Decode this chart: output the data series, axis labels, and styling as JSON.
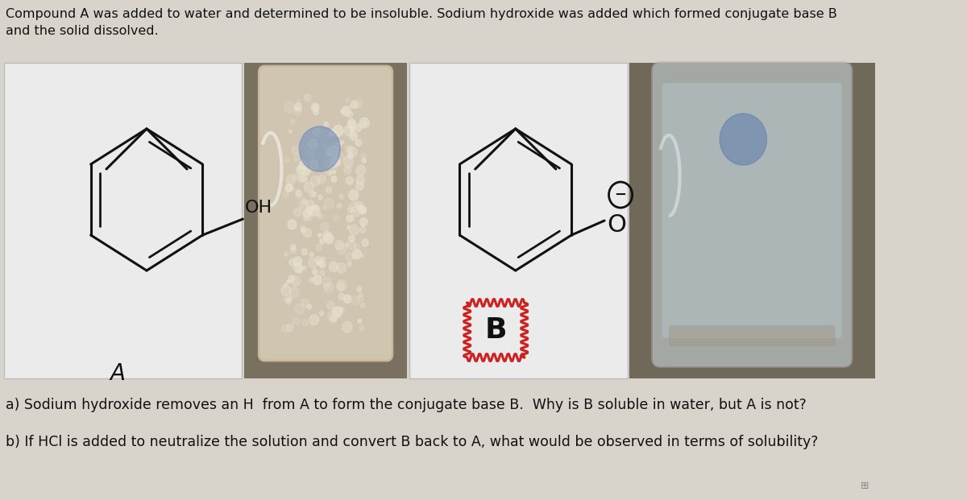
{
  "background_color": "#d8d4cc",
  "title_text": "Compound A was added to water and determined to be insoluble. Sodium hydroxide was added which formed conjugate base B\nand the solid dissolved.",
  "question_a": "a) Sodium hydroxide removes an H  from A to form the conjugate base B.  Why is B soluble in water, but A is not?",
  "question_b": "b) If HCl is added to neutralize the solution and convert B back to A, what would be observed in terms of solubility?",
  "label_A": "A",
  "label_B": "B",
  "label_OH": "OH",
  "text_color": "#111111",
  "title_fontsize": 11.5,
  "question_fontsize": 12.5,
  "structure_color": "#111111",
  "B_label_color": "#111111",
  "B_box_border_color": "#cc2222",
  "box_face_color": "#ebebeb",
  "box_edge_color": "#bbbbbb",
  "tt1_bg": "#7a6e60",
  "tt2_bg": "#706a60"
}
